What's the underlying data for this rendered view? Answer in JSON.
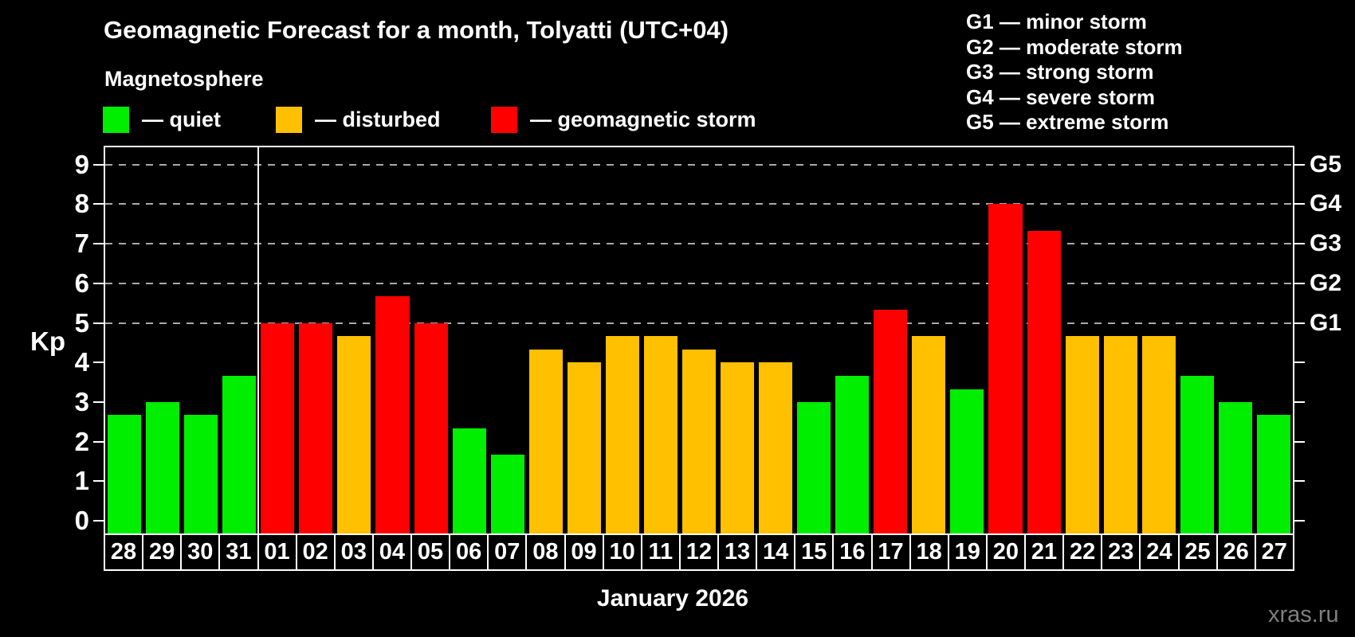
{
  "header": {
    "title": "Geomagnetic Forecast for a month, Tolyatti (UTC+04)",
    "subtitle": "Magnetosphere"
  },
  "legend": {
    "items": [
      {
        "key": "quiet",
        "label": "— quiet",
        "color": "#00ee00"
      },
      {
        "key": "disturbed",
        "label": "— disturbed",
        "color": "#ffc000"
      },
      {
        "key": "storm",
        "label": "— geomagnetic storm",
        "color": "#ff0000"
      }
    ]
  },
  "g_scale_legend": {
    "items": [
      "G1 — minor storm",
      "G2 — moderate storm",
      "G3 — strong storm",
      "G4 — severe storm",
      "G5 — extreme storm"
    ]
  },
  "axes": {
    "y_label": "Kp",
    "y_ticks": [
      0,
      1,
      2,
      3,
      4,
      5,
      6,
      7,
      8,
      9
    ],
    "y_gridlines": [
      5,
      6,
      7,
      8,
      9
    ],
    "right_axis_labels": [
      {
        "value": 5,
        "label": "G1"
      },
      {
        "value": 6,
        "label": "G2"
      },
      {
        "value": 7,
        "label": "G3"
      },
      {
        "value": 8,
        "label": "G4"
      },
      {
        "value": 9,
        "label": "G5"
      }
    ],
    "x_caption": "January 2026"
  },
  "watermark": "xras.ru",
  "chart_data": {
    "type": "bar",
    "title": "Geomagnetic Forecast for a month, Tolyatti (UTC+04)",
    "ylabel": "Kp",
    "ylim": [
      0,
      9.4
    ],
    "grid": "dashed horizontal at Kp 5-9",
    "legend_position": "top-left",
    "categories": [
      "28",
      "29",
      "30",
      "31",
      "01",
      "02",
      "03",
      "04",
      "05",
      "06",
      "07",
      "08",
      "09",
      "10",
      "11",
      "12",
      "13",
      "14",
      "15",
      "16",
      "17",
      "18",
      "19",
      "20",
      "21",
      "22",
      "23",
      "24",
      "25",
      "26",
      "27"
    ],
    "values": [
      2.67,
      3.0,
      2.67,
      3.67,
      5.0,
      5.0,
      4.67,
      5.67,
      5.0,
      2.33,
      1.67,
      4.33,
      4.0,
      4.67,
      4.67,
      4.33,
      4.0,
      4.0,
      3.0,
      3.67,
      5.33,
      4.67,
      3.33,
      8.0,
      7.33,
      4.67,
      4.67,
      4.67,
      3.67,
      3.0,
      2.67
    ],
    "statuses": [
      "quiet",
      "quiet",
      "quiet",
      "quiet",
      "storm",
      "storm",
      "disturbed",
      "storm",
      "storm",
      "quiet",
      "quiet",
      "disturbed",
      "disturbed",
      "disturbed",
      "disturbed",
      "disturbed",
      "disturbed",
      "disturbed",
      "quiet",
      "quiet",
      "storm",
      "disturbed",
      "quiet",
      "storm",
      "storm",
      "disturbed",
      "disturbed",
      "disturbed",
      "quiet",
      "quiet",
      "quiet"
    ],
    "status_colors": {
      "quiet": "#00ee00",
      "disturbed": "#ffc000",
      "storm": "#ff0000"
    },
    "month_separator_after_index": 3,
    "x_caption": "January 2026"
  }
}
